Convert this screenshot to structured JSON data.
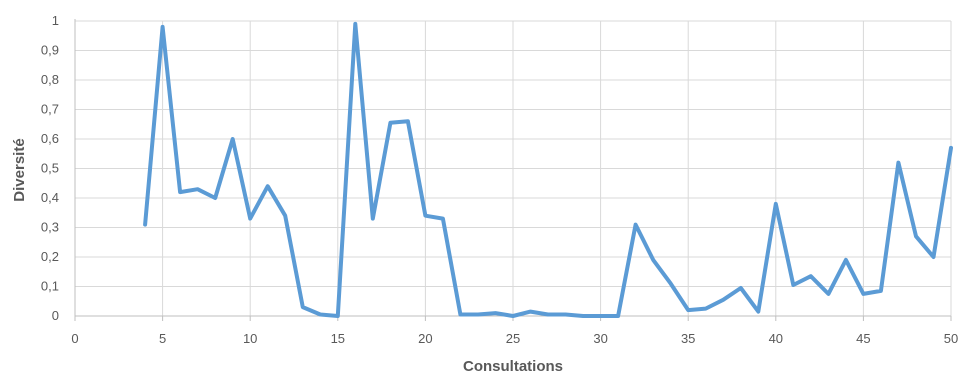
{
  "chart_data": {
    "type": "line",
    "xlabel": "Consultations",
    "ylabel": "Diversité",
    "xlim": [
      0,
      50
    ],
    "ylim": [
      0,
      1
    ],
    "grid": true,
    "x_ticks": [
      "0",
      "5",
      "10",
      "15",
      "20",
      "25",
      "30",
      "35",
      "40",
      "45",
      "50"
    ],
    "y_ticks": [
      "0",
      "0,1",
      "0,2",
      "0,3",
      "0,4",
      "0,5",
      "0,6",
      "0,7",
      "0,8",
      "0,9",
      "1"
    ],
    "color": "#5b9bd5",
    "series": [
      {
        "x": [
          4,
          5,
          6,
          7,
          8,
          9,
          10,
          11,
          12,
          13,
          14,
          15,
          16,
          17,
          18,
          19,
          20,
          21,
          22,
          23,
          24,
          25,
          26,
          27,
          28,
          29,
          30,
          31,
          32,
          33,
          34,
          35,
          36,
          37,
          38,
          39,
          40,
          41,
          42,
          43,
          44,
          45,
          46,
          47,
          48,
          49,
          50
        ],
        "values": [
          0.31,
          0.98,
          0.42,
          0.43,
          0.4,
          0.6,
          0.33,
          0.44,
          0.34,
          0.03,
          0.005,
          0.0,
          0.99,
          0.33,
          0.655,
          0.66,
          0.34,
          0.33,
          0.005,
          0.005,
          0.01,
          0.0,
          0.015,
          0.005,
          0.005,
          0.0,
          0.0,
          0.0,
          0.31,
          0.19,
          0.11,
          0.02,
          0.025,
          0.055,
          0.095,
          0.015,
          0.38,
          0.105,
          0.135,
          0.075,
          0.19,
          0.075,
          0.085,
          0.52,
          0.27,
          0.2,
          0.57
        ]
      }
    ]
  }
}
